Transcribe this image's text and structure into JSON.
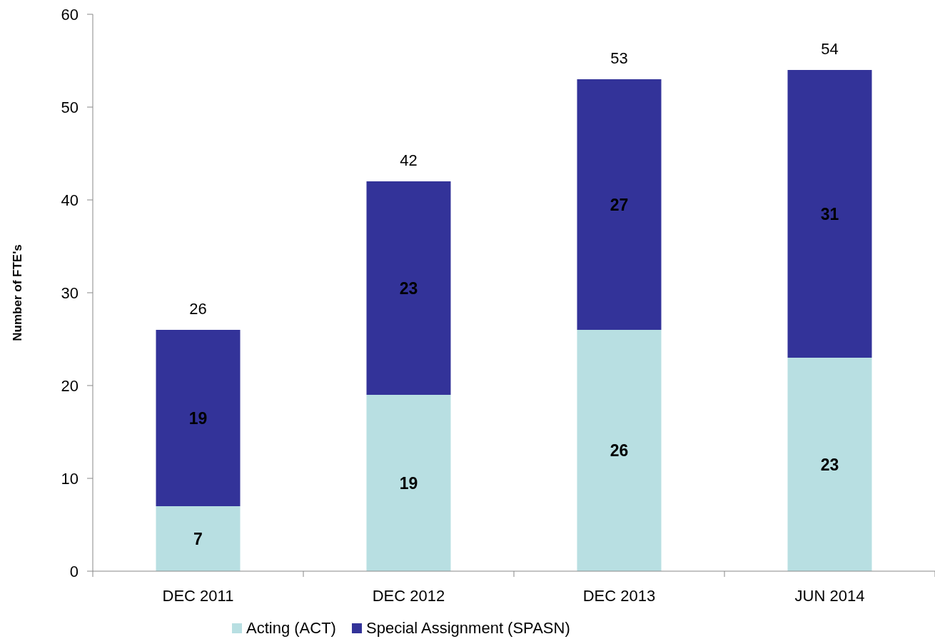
{
  "chart_data": {
    "type": "bar",
    "stacked": true,
    "ylabel": "Number of FTE's",
    "categories": [
      "DEC 2011",
      "DEC 2012",
      "DEC 2013",
      "JUN 2014"
    ],
    "series": [
      {
        "name": "Acting (ACT)",
        "color": "#b8dfe2",
        "values": [
          7,
          19,
          26,
          23
        ]
      },
      {
        "name": "Special Assignment (SPASN)",
        "color": "#333399",
        "values": [
          19,
          23,
          27,
          31
        ]
      }
    ],
    "ylim": [
      0,
      60
    ],
    "yticks": [
      0,
      10,
      20,
      30,
      40,
      50,
      60
    ],
    "grid": false,
    "legend": "bottom",
    "data_labels": true,
    "totals": [
      "26",
      "42",
      "53",
      "54"
    ]
  }
}
